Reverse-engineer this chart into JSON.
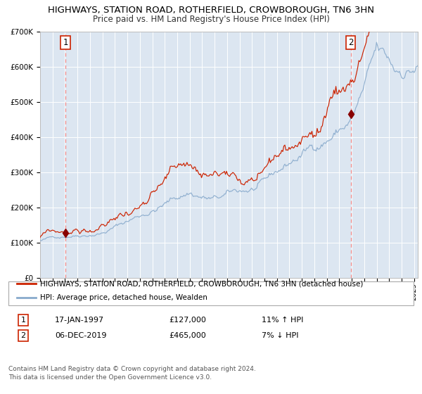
{
  "title_line1": "HIGHWAYS, STATION ROAD, ROTHERFIELD, CROWBOROUGH, TN6 3HN",
  "title_line2": "Price paid vs. HM Land Registry's House Price Index (HPI)",
  "ylim": [
    0,
    700000
  ],
  "yticks": [
    0,
    100000,
    200000,
    300000,
    400000,
    500000,
    600000,
    700000
  ],
  "ytick_labels": [
    "£0",
    "£100K",
    "£200K",
    "£300K",
    "£400K",
    "£500K",
    "£600K",
    "£700K"
  ],
  "sale1_date": "17-JAN-1997",
  "sale1_price": 127000,
  "sale1_x": 1997.04,
  "sale2_date": "06-DEC-2019",
  "sale2_price": 465000,
  "sale2_x": 2019.92,
  "sale1_pct": "11% ↑ HPI",
  "sale2_pct": "7% ↓ HPI",
  "legend_red": "HIGHWAYS, STATION ROAD, ROTHERFIELD, CROWBOROUGH, TN6 3HN (detached house)",
  "legend_blue": "HPI: Average price, detached house, Wealden",
  "footer1": "Contains HM Land Registry data © Crown copyright and database right 2024.",
  "footer2": "This data is licensed under the Open Government Licence v3.0.",
  "red_color": "#cc2200",
  "blue_color": "#88aacc",
  "bg_color": "#dce6f1",
  "grid_color": "#ffffff",
  "vline_color": "#ee8888",
  "box_edge_color": "#cc2200",
  "marker_color": "#880000",
  "start_year": 1995.0,
  "end_year": 2025.3,
  "title_fontsize": 9.5,
  "subtitle_fontsize": 8.5,
  "tick_fontsize": 7.5,
  "legend_fontsize": 7.5,
  "table_fontsize": 8.0,
  "footer_fontsize": 6.5
}
